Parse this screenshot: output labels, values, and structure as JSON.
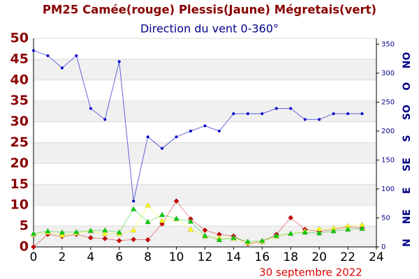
{
  "chart_data": {
    "type": "line",
    "title": "PM25 Camée(rouge) Plessis(Jaune) Mégretais(vert)",
    "subtitle": "Direction du vent 0-360°",
    "date_label": "30 septembre 2022",
    "x": [
      0,
      1,
      2,
      3,
      4,
      5,
      6,
      7,
      8,
      9,
      10,
      11,
      12,
      13,
      14,
      15,
      16,
      17,
      18,
      19,
      20,
      21,
      22,
      23
    ],
    "xlim": [
      0,
      24
    ],
    "xticks": [
      0,
      2,
      4,
      6,
      8,
      10,
      12,
      14,
      16,
      18,
      20,
      22,
      24
    ],
    "ylim": [
      0,
      50
    ],
    "yticks": [
      0,
      5,
      10,
      15,
      20,
      25,
      30,
      35,
      40,
      45,
      50
    ],
    "y2lim": [
      0,
      360
    ],
    "y2ticks": [
      0,
      50,
      100,
      150,
      200,
      250,
      300,
      350
    ],
    "y2_direction_ticks": [
      {
        "value": 0,
        "label": "N"
      },
      {
        "value": 45,
        "label": "NE"
      },
      {
        "value": 90,
        "label": "E"
      },
      {
        "value": 135,
        "label": "SE"
      },
      {
        "value": 180,
        "label": "S"
      },
      {
        "value": 225,
        "label": "SO"
      },
      {
        "value": 270,
        "label": "O"
      },
      {
        "value": 315,
        "label": "NO"
      }
    ],
    "grid": true,
    "series": [
      {
        "color": "#cc0000",
        "marker": "diamond",
        "values": [
          0,
          3,
          2.5,
          3,
          2.2,
          2,
          1.5,
          1.8,
          1.7,
          5.5,
          11,
          6.7,
          4,
          3,
          2.6,
          0.8,
          1.2,
          3,
          7,
          4.2,
          3.7,
          4.2,
          4.8,
          4.5
        ]
      },
      {
        "color": "#ffff00",
        "marker": "triangle",
        "values": [
          3,
          3.5,
          2.8,
          3.3,
          3.8,
          3.2,
          3.1,
          4,
          10,
          6.3,
          6.7,
          4.2,
          2.5,
          2.2,
          2,
          1,
          1.3,
          2.5,
          3.2,
          3.8,
          4.3,
          4.5,
          5,
          5.3
        ]
      },
      {
        "color": "#00cc00",
        "marker": "triangle",
        "values": [
          3.2,
          3.8,
          3.5,
          3.6,
          3.9,
          4,
          3.5,
          9.1,
          6,
          7.7,
          6.8,
          6.1,
          2.7,
          1.7,
          2.2,
          1.3,
          1.5,
          2.7,
          3.2,
          3.5,
          3.3,
          3.8,
          4.2,
          4.4
        ]
      },
      {
        "color": "#0000cc",
        "marker": "circle",
        "axis": "y2",
        "values": [
          339,
          330,
          309,
          330,
          239,
          220,
          320,
          79,
          190,
          170,
          190,
          200,
          209,
          200,
          230,
          230,
          230,
          239,
          239,
          220,
          220,
          230,
          230,
          230
        ]
      }
    ]
  }
}
